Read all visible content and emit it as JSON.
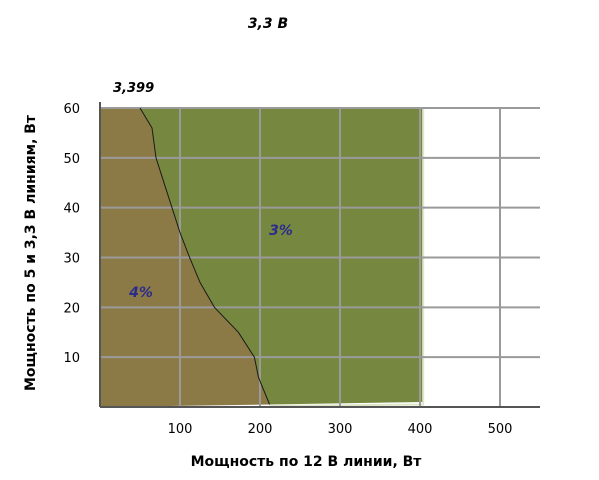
{
  "chart_data": {
    "type": "area",
    "title": "3,3 В",
    "xlabel": "Мощность по 12 В линии, Вт",
    "ylabel": "Мощность по 5 и 3,3 В линиям, Вт",
    "xlim": [
      0,
      550
    ],
    "ylim": [
      0,
      60
    ],
    "x_ticks": [
      100,
      200,
      300,
      400,
      500
    ],
    "y_ticks": [
      10,
      20,
      30,
      40,
      50,
      60
    ],
    "x_tick_labels": [
      "100",
      "200",
      "300",
      "400",
      "500"
    ],
    "y_tick_labels": [
      "10",
      "20",
      "30",
      "40",
      "50",
      "60"
    ],
    "grid": true,
    "annotation": "3,399",
    "regions": [
      {
        "label": "3%",
        "color": "#76883f",
        "points": [
          [
            50,
            60
          ],
          [
            404,
            60
          ],
          [
            404,
            1
          ],
          [
            212,
            0.5
          ],
          [
            198,
            6
          ],
          [
            193,
            10
          ],
          [
            173,
            15
          ],
          [
            143,
            20
          ],
          [
            125,
            25
          ],
          [
            112,
            30
          ],
          [
            100,
            35
          ],
          [
            90,
            40
          ],
          [
            80,
            45
          ],
          [
            70,
            50
          ],
          [
            65,
            56
          ],
          [
            50,
            60
          ]
        ]
      },
      {
        "label": "4%",
        "color": "#8c7a46",
        "points": [
          [
            0,
            60
          ],
          [
            50,
            60
          ],
          [
            65,
            56
          ],
          [
            70,
            50
          ],
          [
            80,
            45
          ],
          [
            90,
            40
          ],
          [
            100,
            35
          ],
          [
            112,
            30
          ],
          [
            125,
            25
          ],
          [
            143,
            20
          ],
          [
            173,
            15
          ],
          [
            193,
            10
          ],
          [
            198,
            6
          ],
          [
            212,
            0.5
          ],
          [
            0,
            0
          ]
        ]
      }
    ]
  }
}
